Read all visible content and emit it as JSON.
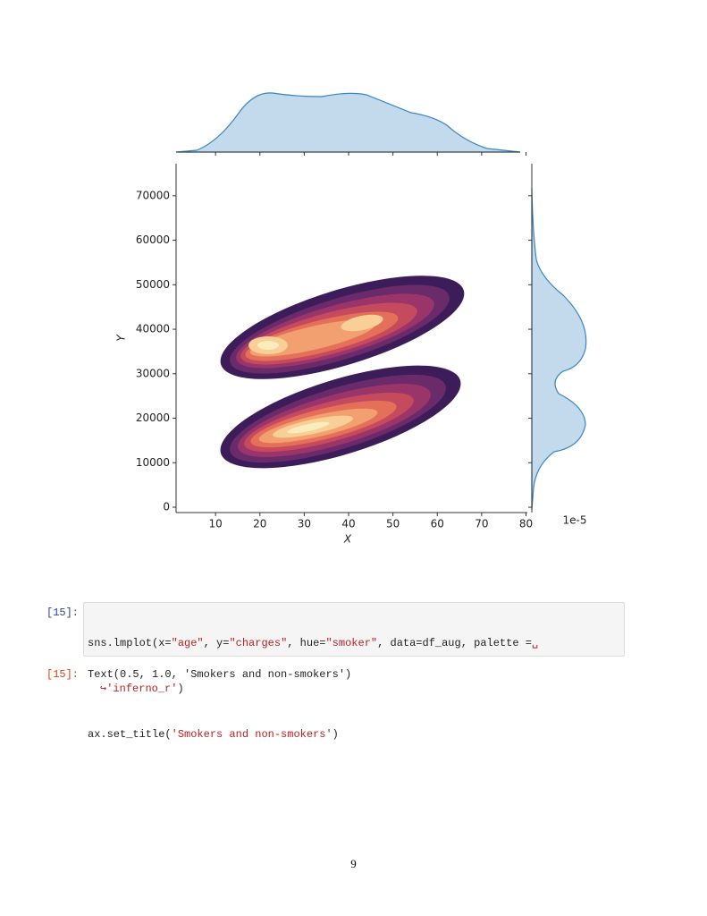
{
  "chart_data": {
    "type": "kde",
    "x_label": "X",
    "y_label": "Y",
    "xlim": [
      1.1,
      80.3
    ],
    "xticks": [
      10,
      20,
      30,
      40,
      50,
      60,
      70,
      80
    ],
    "ylim": [
      -1200,
      77200
    ],
    "yticks": [
      0,
      10000,
      20000,
      30000,
      40000,
      50000,
      60000,
      70000
    ],
    "marginal_scale_label": "1e-5",
    "marginal_color": "#3a86c0"
  },
  "cells": [
    {
      "prompt": "[15]:",
      "code": [
        [
          "sns.lmplot(x=",
          "\"age\"",
          ", y=",
          "\"charges\"",
          ", hue=",
          "\"smoker\"",
          ", data=df_aug, palette =",
          "␣"
        ],
        [
          "↪",
          "'inferno_r'",
          ")"
        ],
        [
          "ax.set_title(",
          "'Smokers and non-smokers'",
          ")"
        ]
      ]
    },
    {
      "prompt": "[15]:",
      "output": "Text(0.5, 1.0, 'Smokers and non-smokers')"
    }
  ],
  "page_number": "9"
}
